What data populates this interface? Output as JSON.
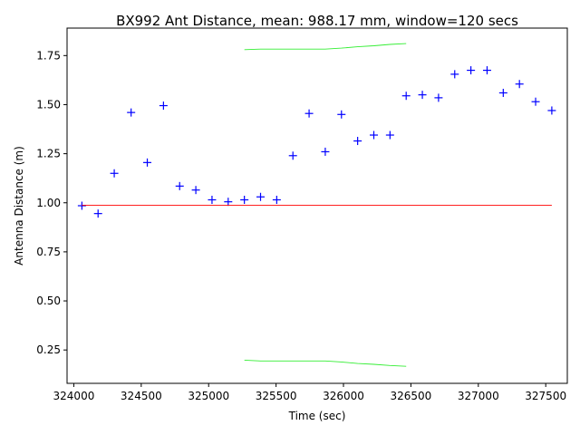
{
  "chart_data": {
    "type": "scatter",
    "title": "BX992 Ant Distance, mean: 988.17 mm, window=120 secs",
    "xlabel": "Time (sec)",
    "ylabel": "Antenna Distance (m)",
    "xlim": [
      323950,
      327660
    ],
    "ylim": [
      0.08,
      1.89
    ],
    "xticks": [
      324000,
      324500,
      325000,
      325500,
      326000,
      326500,
      327000,
      327500
    ],
    "yticks": [
      0.25,
      0.5,
      0.75,
      1.0,
      1.25,
      1.5,
      1.75
    ],
    "grid": false,
    "colors": {
      "points": "#0000ff",
      "mean": "#ff0000",
      "bounds": "#33ee33"
    },
    "series": [
      {
        "kind": "points",
        "x": [
          324060,
          324180,
          324300,
          324425,
          324545,
          324665,
          324785,
          324905,
          325025,
          325145,
          325265,
          325385,
          325505,
          325625,
          325745,
          325865,
          325985,
          326105,
          326225,
          326345,
          326465,
          326585,
          326705,
          326825,
          326945,
          327065,
          327185,
          327305,
          327425,
          327545
        ],
        "y": [
          0.985,
          0.945,
          1.15,
          1.46,
          1.205,
          1.495,
          1.085,
          1.065,
          1.015,
          1.005,
          1.015,
          1.03,
          1.015,
          1.24,
          1.455,
          1.26,
          1.45,
          1.315,
          1.345,
          1.345,
          1.545,
          1.55,
          1.535,
          1.655,
          1.675,
          1.675,
          1.56,
          1.605,
          1.515,
          1.47
        ]
      },
      {
        "kind": "mean-line",
        "x": [
          324060,
          327545
        ],
        "y": [
          0.988,
          0.988
        ]
      },
      {
        "kind": "upper-bound",
        "x": [
          325265,
          325385,
          325505,
          325625,
          325745,
          325865,
          325985,
          326105,
          326225,
          326345,
          326465
        ],
        "y": [
          1.78,
          1.783,
          1.783,
          1.783,
          1.783,
          1.783,
          1.788,
          1.795,
          1.8,
          1.807,
          1.811
        ]
      },
      {
        "kind": "lower-bound",
        "x": [
          325265,
          325385,
          325505,
          325625,
          325745,
          325865,
          325985,
          326105,
          326225,
          326345,
          326465
        ],
        "y": [
          0.198,
          0.194,
          0.194,
          0.194,
          0.194,
          0.194,
          0.189,
          0.181,
          0.177,
          0.171,
          0.167
        ]
      }
    ]
  }
}
